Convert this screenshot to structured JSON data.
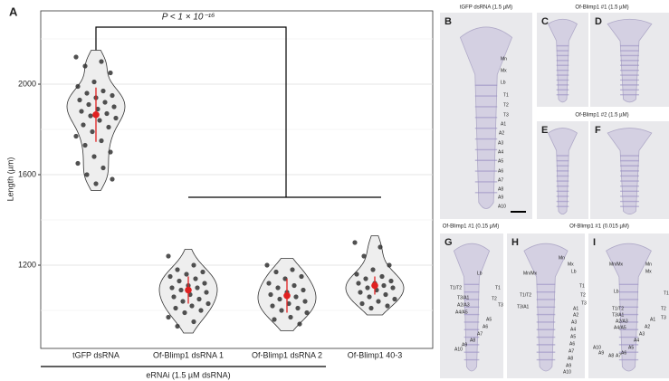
{
  "chart_data": {
    "type": "violin",
    "panel_label": "A",
    "annotation": "P < 1 × 10⁻¹⁶",
    "y_label": "Length (µm)",
    "x_group_label": "eRNAi (1.5 µM dsRNA)",
    "categories": [
      "tGFP dsRNA",
      "Of-Blimp1 dsRNA 1",
      "Of-Blimp1 dsRNA 2",
      "Of-Blimp1 40-3"
    ],
    "series": [
      {
        "values": [
          2120,
          2100,
          2080,
          2050,
          2010,
          1990,
          1970,
          1960,
          1950,
          1940,
          1930,
          1920,
          1910,
          1900,
          1890,
          1880,
          1870,
          1860,
          1850,
          1840,
          1820,
          1810,
          1790,
          1770,
          1750,
          1730,
          1700,
          1680,
          1650,
          1630,
          1600,
          1580,
          1560
        ],
        "mean": 1865,
        "sd": 120
      },
      {
        "values": [
          1240,
          1200,
          1180,
          1170,
          1160,
          1150,
          1140,
          1130,
          1120,
          1110,
          1100,
          1100,
          1090,
          1080,
          1070,
          1060,
          1050,
          1040,
          1030,
          1020,
          1010,
          1000,
          990,
          970,
          950,
          930
        ],
        "mean": 1090,
        "sd": 60
      },
      {
        "values": [
          1200,
          1180,
          1170,
          1150,
          1140,
          1120,
          1110,
          1100,
          1090,
          1080,
          1070,
          1060,
          1050,
          1040,
          1030,
          1020,
          1010,
          1000,
          990,
          970,
          960,
          940
        ],
        "mean": 1065,
        "sd": 75
      },
      {
        "values": [
          1300,
          1280,
          1240,
          1200,
          1180,
          1160,
          1150,
          1140,
          1130,
          1120,
          1120,
          1110,
          1100,
          1100,
          1090,
          1080,
          1070,
          1060,
          1050,
          1040,
          1030,
          1020,
          1010
        ],
        "mean": 1110,
        "sd": 40
      }
    ],
    "point_color": "#333333",
    "violin_fill": "#eeeeee",
    "mean_color": "#e02020",
    "ylim": [
      832,
      2324
    ],
    "yticks": [
      1200,
      1600,
      2000
    ],
    "minor_yticks": [
      1000,
      1400,
      1800,
      2200
    ],
    "grid": true
  },
  "headers": [
    "tGFP dsRNA (1.5 µM)",
    "Of-Blimp1 #1 (1.5 µM)",
    "Of-Blimp1 #2 (1.5 µM)",
    "Of-Blimp1 #1 (0.15 µM)",
    "Of-Blimp1 #1 (0.015 µM)"
  ],
  "panels": [
    {
      "letter": "B",
      "labels": [
        "Mn",
        "Mx",
        "Lb",
        "T1",
        "T2",
        "T3",
        "A1",
        "A2",
        "A3",
        "A4",
        "A5",
        "A6",
        "A7",
        "A8",
        "A9",
        "A10"
      ]
    },
    {
      "letter": "C",
      "labels": []
    },
    {
      "letter": "D",
      "labels": []
    },
    {
      "letter": "E",
      "labels": []
    },
    {
      "letter": "F",
      "labels": []
    },
    {
      "letter": "G",
      "labels": [
        "Lb",
        "T1/T2",
        "T3/A1",
        "A2/A3",
        "A4/A5",
        "T1",
        "T2",
        "T3",
        "A5",
        "A6",
        "A7",
        "A8",
        "A9",
        "A10"
      ]
    },
    {
      "letter": "H",
      "labels": [
        "Mn",
        "Mx",
        "Lb",
        "T1",
        "T2",
        "T3",
        "Mn/Mx",
        "T1/T2",
        "T3/A1",
        "A1",
        "A2",
        "A3",
        "A4",
        "A5",
        "A6",
        "A7",
        "A8",
        "A9",
        "A10"
      ]
    },
    {
      "letter": "I",
      "labels": [
        "Mn",
        "Mx",
        "Mn/Mx",
        "Lb",
        "T1",
        "T1/T2",
        "T3/A1",
        "A2/A3",
        "A4/A5",
        "T2",
        "T3",
        "A1",
        "A2",
        "A3",
        "A4",
        "A5",
        "A6",
        "A7",
        "A8",
        "A9",
        "A10"
      ]
    }
  ]
}
